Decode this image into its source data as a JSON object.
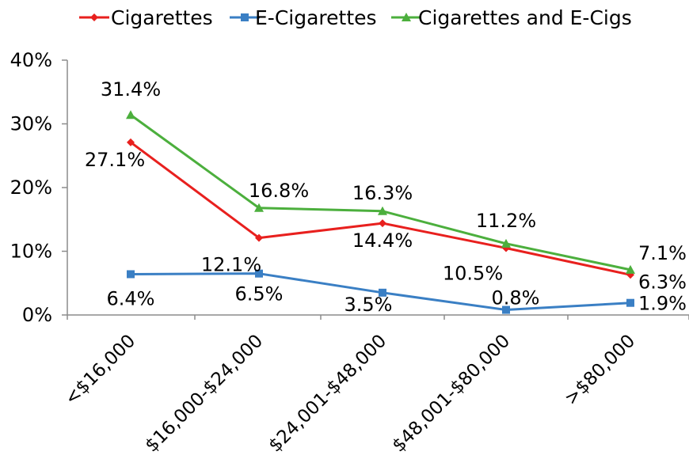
{
  "chart_data": {
    "type": "line",
    "title": "",
    "xlabel": "",
    "ylabel": "",
    "categories": [
      "<$16,000",
      "$16,000-$24,000",
      "$24,001-$48,000",
      "$48,001-$80,000",
      ">$80,000"
    ],
    "ylim": [
      0,
      40
    ],
    "yticks": [
      0,
      10,
      20,
      30,
      40
    ],
    "ytick_labels": [
      "0%",
      "10%",
      "20%",
      "30%",
      "40%"
    ],
    "grid": false,
    "legend_position": "top",
    "series": [
      {
        "name": "Cigarettes",
        "color": "#e8201e",
        "marker": "diamond",
        "values": [
          27.1,
          12.1,
          14.4,
          10.5,
          6.3
        ],
        "labels": [
          "27.1%",
          "12.1%",
          "14.4%",
          "10.5%",
          "6.3%"
        ]
      },
      {
        "name": "E-Cigarettes",
        "color": "#3a7fc4",
        "marker": "square",
        "values": [
          6.4,
          6.5,
          3.5,
          0.8,
          1.9
        ],
        "labels": [
          "6.4%",
          "6.5%",
          "3.5%",
          "0.8%",
          "1.9%"
        ]
      },
      {
        "name": "Cigarettes and E-Cigs",
        "color": "#4caf3d",
        "marker": "triangle",
        "values": [
          31.4,
          16.8,
          16.3,
          11.2,
          7.1
        ],
        "labels": [
          "31.4%",
          "16.8%",
          "16.3%",
          "11.2%",
          "7.1%"
        ]
      }
    ]
  }
}
